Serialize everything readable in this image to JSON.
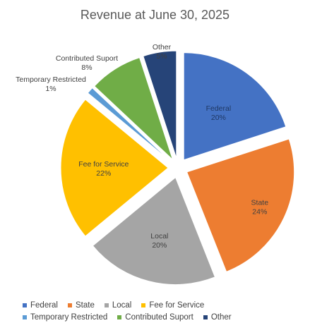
{
  "chart_data": {
    "type": "pie",
    "title": "Revenue at June 30, 2025",
    "exploded": true,
    "slices": [
      {
        "label": "Federal",
        "value": 20,
        "percent_label": "20%",
        "color": "#4472C4"
      },
      {
        "label": "State",
        "value": 24,
        "percent_label": "24%",
        "color": "#ED7D31"
      },
      {
        "label": "Local",
        "value": 20,
        "percent_label": "20%",
        "color": "#A5A5A5"
      },
      {
        "label": "Fee for Service",
        "value": 22,
        "percent_label": "22%",
        "color": "#FFC000"
      },
      {
        "label": "Temporary Restricted",
        "value": 1,
        "percent_label": "1%",
        "color": "#5B9BD5"
      },
      {
        "label": "Contributed Suport",
        "value": 8,
        "percent_label": "8%",
        "color": "#70AD47"
      },
      {
        "label": "Other",
        "value": 5,
        "percent_label": "5%",
        "color": "#264478"
      }
    ],
    "legend": {
      "position": "bottom",
      "rows": [
        [
          "Federal",
          "State",
          "Local",
          "Fee for Service"
        ],
        [
          "Temporary Restricted",
          "Contributed Suport",
          "Other"
        ]
      ]
    }
  }
}
